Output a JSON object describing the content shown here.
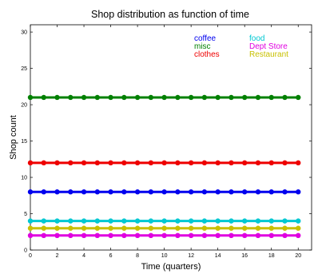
{
  "chart_data": {
    "type": "line",
    "title": "Shop distribution as function of time",
    "xlabel": "Time (quarters)",
    "ylabel": "Shop count",
    "xlim": [
      0,
      21
    ],
    "ylim": [
      0,
      31
    ],
    "x_ticks": [
      0,
      2,
      4,
      6,
      8,
      10,
      12,
      14,
      16,
      18,
      20
    ],
    "y_ticks": [
      0,
      5,
      10,
      15,
      20,
      25,
      30
    ],
    "grid": false,
    "legend_placement": "top-right",
    "x": [
      0,
      1,
      2,
      3,
      4,
      5,
      6,
      7,
      8,
      9,
      10,
      11,
      12,
      13,
      14,
      15,
      16,
      17,
      18,
      19,
      20
    ],
    "series": [
      {
        "name": "coffee",
        "color": "#0000ee",
        "values": [
          8,
          8,
          8,
          8,
          8,
          8,
          8,
          8,
          8,
          8,
          8,
          8,
          8,
          8,
          8,
          8,
          8,
          8,
          8,
          8,
          8
        ]
      },
      {
        "name": "misc",
        "color": "#008000",
        "values": [
          21,
          21,
          21,
          21,
          21,
          21,
          21,
          21,
          21,
          21,
          21,
          21,
          21,
          21,
          21,
          21,
          21,
          21,
          21,
          21,
          21
        ]
      },
      {
        "name": "clothes",
        "color": "#ee0000",
        "values": [
          12,
          12,
          12,
          12,
          12,
          12,
          12,
          12,
          12,
          12,
          12,
          12,
          12,
          12,
          12,
          12,
          12,
          12,
          12,
          12,
          12
        ]
      },
      {
        "name": "food",
        "color": "#00c8d2",
        "values": [
          4,
          4,
          4,
          4,
          4,
          4,
          4,
          4,
          4,
          4,
          4,
          4,
          4,
          4,
          4,
          4,
          4,
          4,
          4,
          4,
          4
        ]
      },
      {
        "name": "Dept Store",
        "color": "#e000e0",
        "values": [
          2,
          2,
          2,
          2,
          2,
          2,
          2,
          2,
          2,
          2,
          2,
          2,
          2,
          2,
          2,
          2,
          2,
          2,
          2,
          2,
          2
        ]
      },
      {
        "name": "Restaurant",
        "color": "#c8c000",
        "values": [
          3,
          3,
          3,
          3,
          3,
          3,
          3,
          3,
          3,
          3,
          3,
          3,
          3,
          3,
          3,
          3,
          3,
          3,
          3,
          3,
          3
        ]
      }
    ],
    "legend_columns": [
      [
        "coffee",
        "misc",
        "clothes"
      ],
      [
        "food",
        "Dept Store",
        "Restaurant"
      ]
    ]
  }
}
